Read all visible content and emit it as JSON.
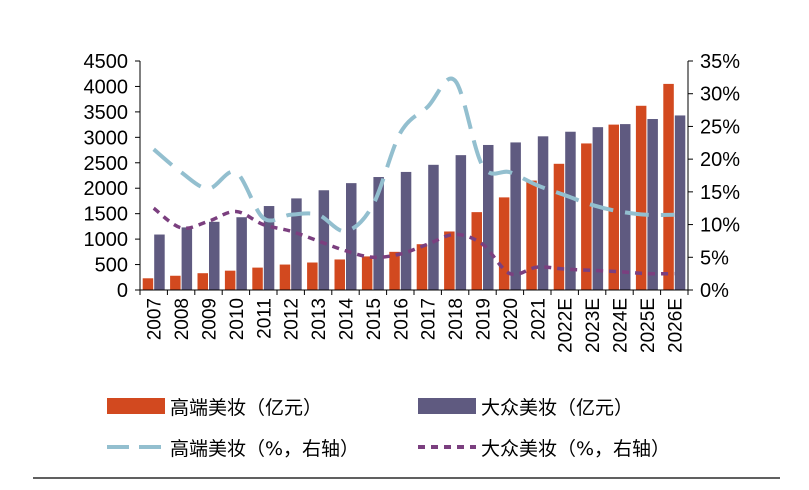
{
  "chart_data": {
    "type": "bar",
    "categories": [
      "2007",
      "2008",
      "2009",
      "2010",
      "2011",
      "2012",
      "2013",
      "2014",
      "2015",
      "2016",
      "2017",
      "2018",
      "2019",
      "2020",
      "2021",
      "2022E",
      "2023E",
      "2024E",
      "2025E",
      "2026E"
    ],
    "series": [
      {
        "name": "高端美妆（亿元）",
        "kind": "bar",
        "axis": "left",
        "color": "#d2491f",
        "values": [
          230,
          280,
          330,
          380,
          440,
          500,
          540,
          600,
          660,
          750,
          900,
          1150,
          1530,
          1820,
          2150,
          2480,
          2880,
          3250,
          3620,
          4050
        ]
      },
      {
        "name": "大众美妆（亿元）",
        "kind": "bar",
        "axis": "left",
        "color": "#5f5a80",
        "values": [
          1090,
          1230,
          1340,
          1430,
          1650,
          1800,
          1960,
          2100,
          2220,
          2320,
          2460,
          2650,
          2850,
          2900,
          3020,
          3110,
          3200,
          3260,
          3360,
          3430
        ]
      },
      {
        "name": "高端美妆（%，右轴）",
        "kind": "line",
        "axis": "right",
        "color": "#93bfcf",
        "dash": "long",
        "values": [
          21.5,
          18.0,
          15.5,
          18.0,
          11.0,
          11.5,
          11.5,
          9.0,
          13.0,
          24.0,
          28.0,
          32.0,
          19.0,
          18.0,
          16.0,
          14.5,
          13.0,
          12.0,
          11.5,
          11.5
        ]
      },
      {
        "name": "大众美妆（%，右轴）",
        "kind": "line",
        "axis": "right",
        "color": "#7b3f7f",
        "dash": "short",
        "values": [
          12.5,
          9.5,
          10.5,
          12.0,
          10.0,
          9.0,
          7.5,
          6.0,
          5.0,
          5.5,
          7.0,
          8.5,
          7.0,
          2.5,
          3.5,
          3.2,
          3.0,
          2.8,
          2.5,
          2.5
        ]
      }
    ],
    "y_left": {
      "ylim": [
        0,
        4500
      ],
      "ticks": [
        "0",
        "500",
        "1000",
        "1500",
        "2000",
        "2500",
        "3000",
        "3500",
        "4000",
        "4500"
      ]
    },
    "y_right": {
      "ylim": [
        0,
        35
      ],
      "ticks": [
        "0%",
        "5%",
        "10%",
        "15%",
        "20%",
        "25%",
        "30%",
        "35%"
      ]
    },
    "title": "",
    "xlabel": "",
    "ylabel": "",
    "legend_position": "bottom"
  }
}
